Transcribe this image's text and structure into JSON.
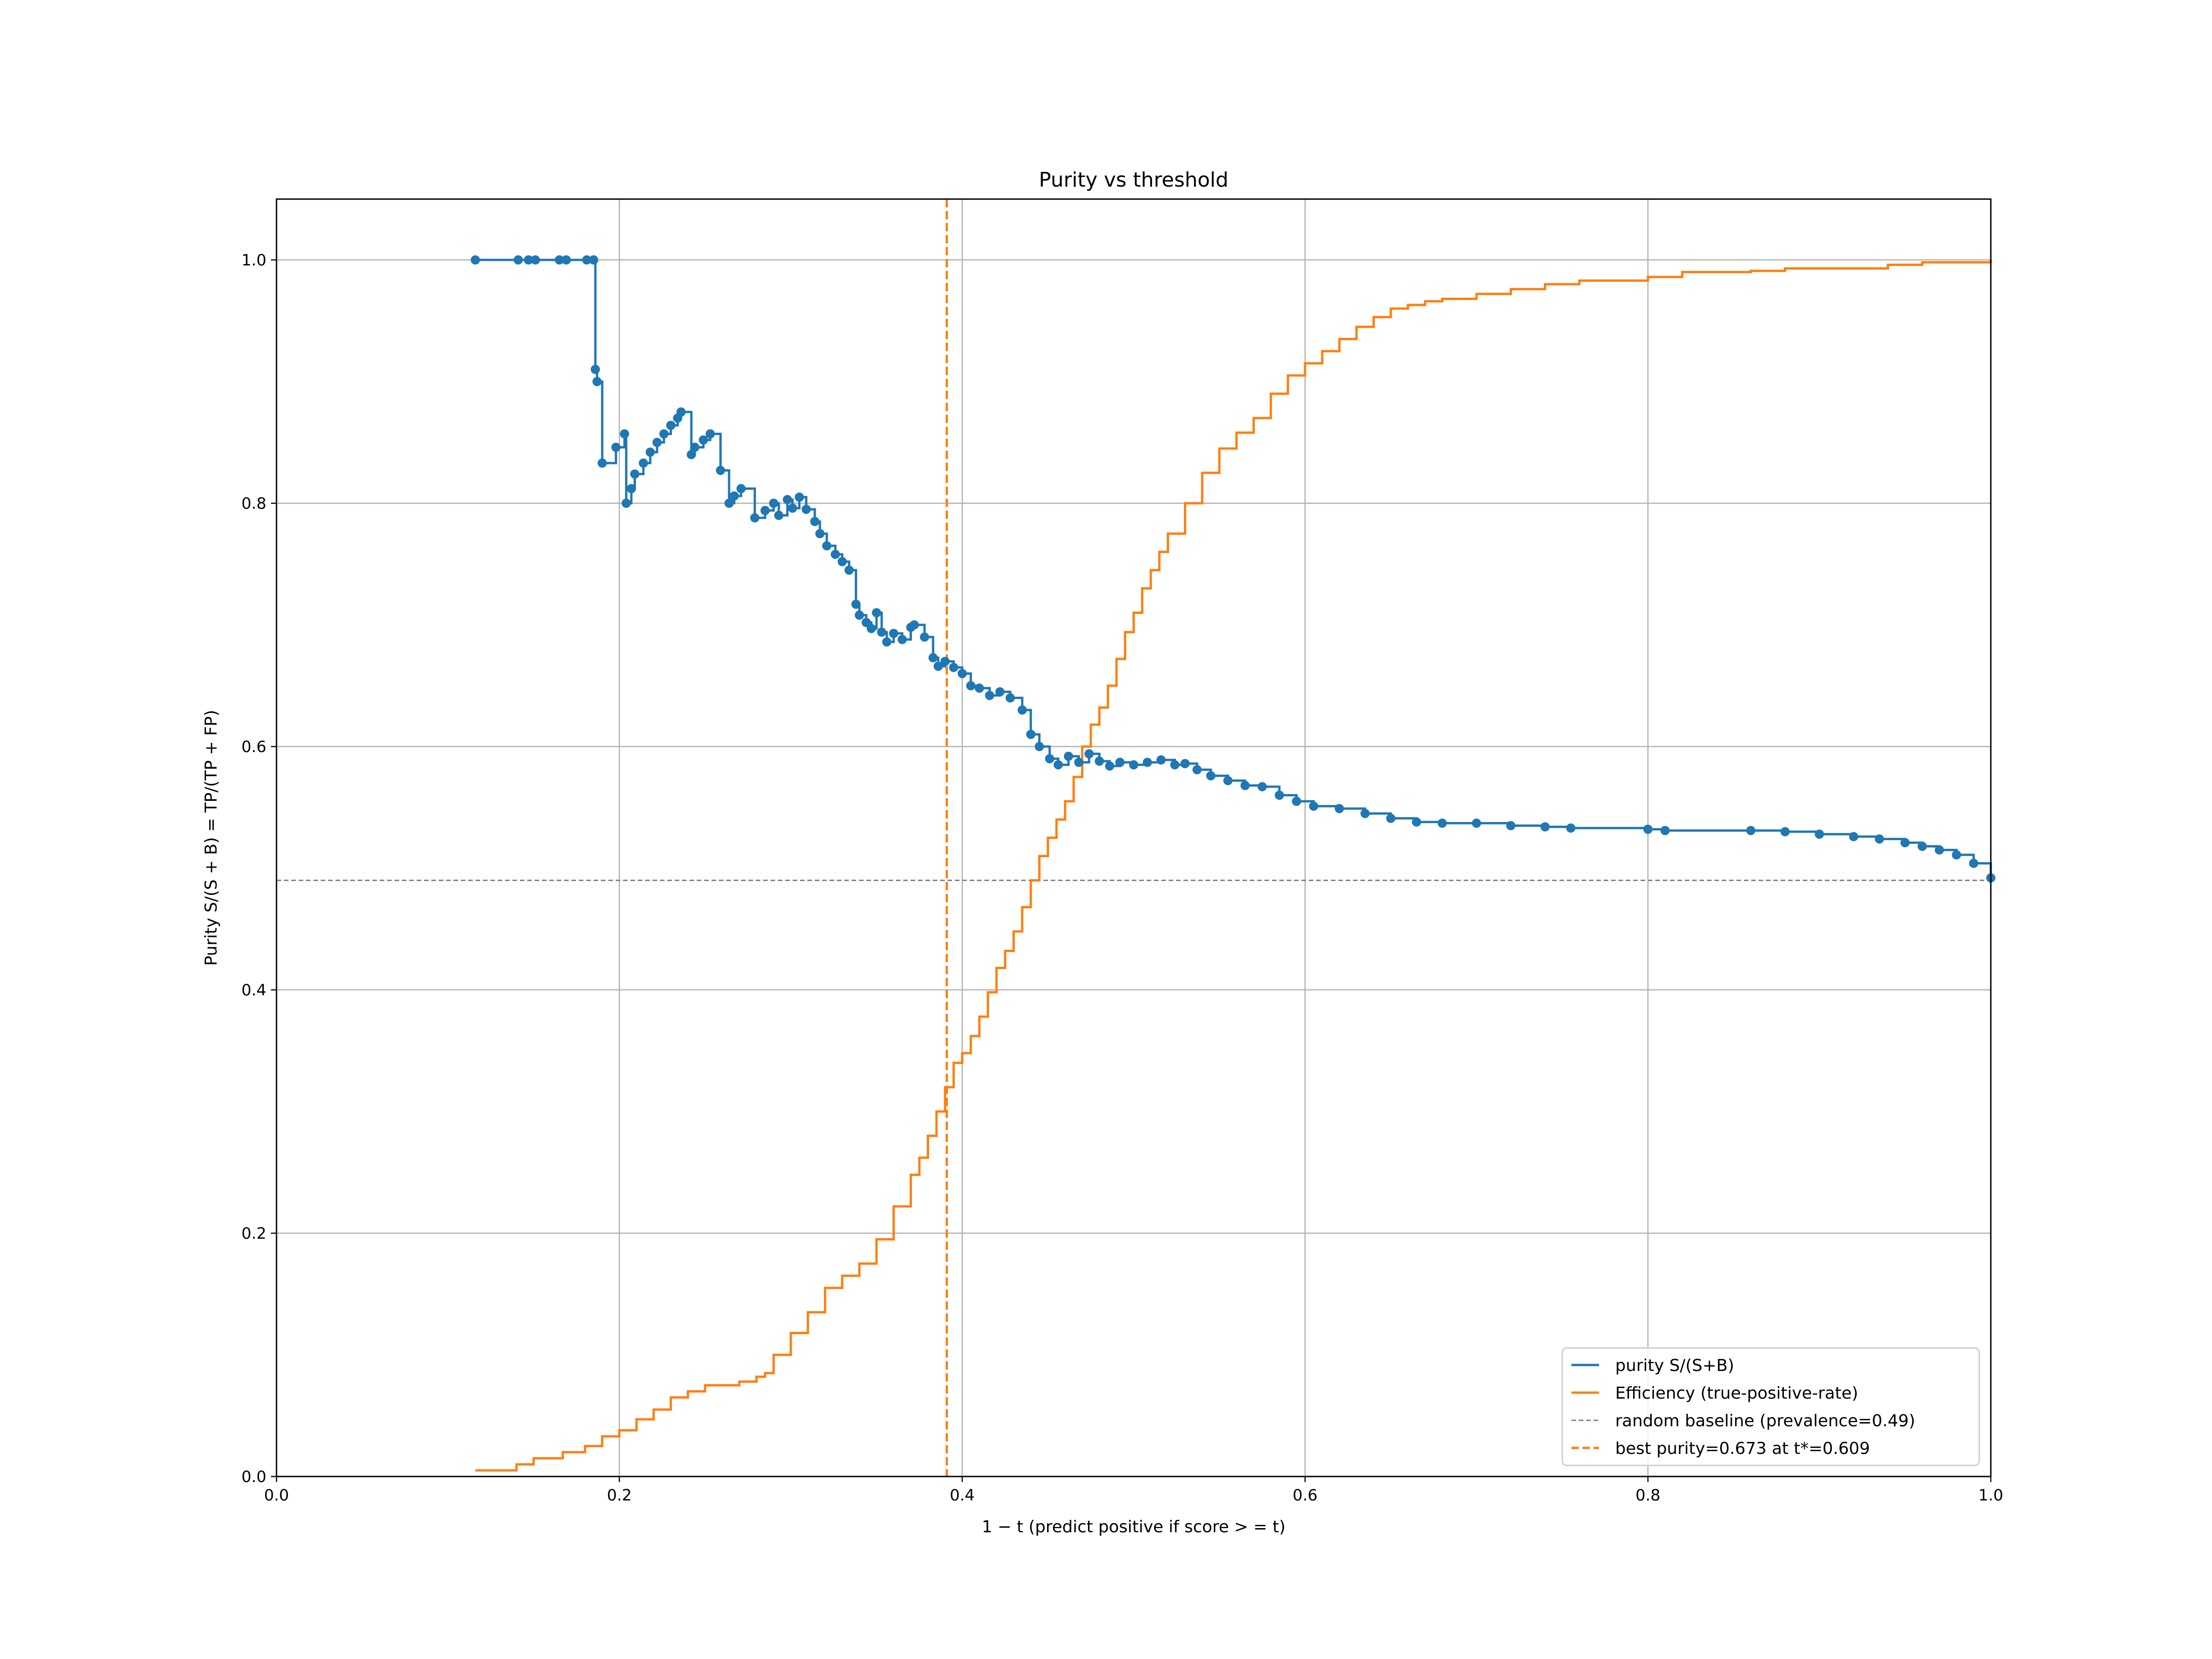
{
  "chart_data": {
    "type": "line",
    "title": "Purity vs threshold",
    "xlabel": "1 − t  (predict positive if score  > = t)",
    "ylabel": "Purity  S/(S + B) = TP/(TP + FP)",
    "xlim": [
      0.0,
      1.0
    ],
    "ylim": [
      0.0,
      1.05
    ],
    "x_ticks": [
      "0.0",
      "0.2",
      "0.4",
      "0.6",
      "0.8",
      "1.0"
    ],
    "y_ticks": [
      "0.0",
      "0.2",
      "0.4",
      "0.6",
      "0.8",
      "1.0"
    ],
    "grid": true,
    "legend_position": "lower-right",
    "colors": {
      "purity": "#1f77b4",
      "efficiency": "#ff7f0e",
      "baseline": "#808080",
      "best": "#ff7f0e",
      "grid": "#b0b0b0"
    },
    "series": [
      {
        "name": "purity S/(S+B)",
        "style": "step-with-markers",
        "x": [
          0.116,
          0.141,
          0.147,
          0.151,
          0.165,
          0.169,
          0.181,
          0.185,
          0.186,
          0.187,
          0.19,
          0.198,
          0.203,
          0.204,
          0.207,
          0.209,
          0.214,
          0.218,
          0.222,
          0.226,
          0.23,
          0.234,
          0.236,
          0.242,
          0.244,
          0.249,
          0.253,
          0.259,
          0.264,
          0.267,
          0.271,
          0.279,
          0.285,
          0.29,
          0.293,
          0.298,
          0.301,
          0.305,
          0.309,
          0.314,
          0.317,
          0.321,
          0.326,
          0.33,
          0.334,
          0.338,
          0.34,
          0.344,
          0.347,
          0.35,
          0.353,
          0.356,
          0.36,
          0.365,
          0.37,
          0.372,
          0.378,
          0.383,
          0.386,
          0.39,
          0.395,
          0.4,
          0.405,
          0.41,
          0.416,
          0.422,
          0.428,
          0.435,
          0.44,
          0.445,
          0.451,
          0.456,
          0.462,
          0.468,
          0.474,
          0.48,
          0.486,
          0.492,
          0.5,
          0.508,
          0.516,
          0.524,
          0.53,
          0.537,
          0.545,
          0.555,
          0.565,
          0.575,
          0.585,
          0.595,
          0.605,
          0.62,
          0.635,
          0.65,
          0.665,
          0.68,
          0.7,
          0.72,
          0.74,
          0.755,
          0.8,
          0.81,
          0.86,
          0.88,
          0.9,
          0.92,
          0.935,
          0.95,
          0.96,
          0.97,
          0.98,
          0.99,
          1.0
        ],
        "y": [
          1.0,
          1.0,
          1.0,
          1.0,
          1.0,
          1.0,
          1.0,
          1.0,
          0.91,
          0.9,
          0.833,
          0.846,
          0.857,
          0.8,
          0.812,
          0.824,
          0.833,
          0.842,
          0.85,
          0.857,
          0.864,
          0.87,
          0.875,
          0.84,
          0.846,
          0.852,
          0.857,
          0.827,
          0.8,
          0.806,
          0.812,
          0.788,
          0.794,
          0.8,
          0.79,
          0.803,
          0.796,
          0.805,
          0.795,
          0.785,
          0.775,
          0.765,
          0.758,
          0.752,
          0.745,
          0.717,
          0.708,
          0.702,
          0.697,
          0.71,
          0.694,
          0.686,
          0.693,
          0.688,
          0.698,
          0.7,
          0.69,
          0.673,
          0.666,
          0.67,
          0.665,
          0.66,
          0.65,
          0.648,
          0.642,
          0.645,
          0.64,
          0.63,
          0.61,
          0.6,
          0.59,
          0.585,
          0.592,
          0.587,
          0.594,
          0.588,
          0.584,
          0.587,
          0.585,
          0.587,
          0.589,
          0.585,
          0.586,
          0.581,
          0.576,
          0.572,
          0.568,
          0.567,
          0.56,
          0.555,
          0.551,
          0.549,
          0.545,
          0.541,
          0.538,
          0.537,
          0.537,
          0.535,
          0.534,
          0.533,
          0.532,
          0.531,
          0.531,
          0.53,
          0.528,
          0.526,
          0.524,
          0.521,
          0.518,
          0.515,
          0.511,
          0.504,
          0.492
        ]
      },
      {
        "name": "Efficiency (true-positive-rate)",
        "style": "step",
        "x": [
          0.116,
          0.14,
          0.15,
          0.167,
          0.18,
          0.19,
          0.2,
          0.21,
          0.22,
          0.23,
          0.24,
          0.25,
          0.26,
          0.27,
          0.28,
          0.285,
          0.29,
          0.3,
          0.31,
          0.32,
          0.33,
          0.34,
          0.35,
          0.36,
          0.37,
          0.375,
          0.38,
          0.385,
          0.39,
          0.395,
          0.4,
          0.405,
          0.41,
          0.415,
          0.42,
          0.425,
          0.43,
          0.435,
          0.44,
          0.445,
          0.45,
          0.455,
          0.46,
          0.465,
          0.47,
          0.475,
          0.48,
          0.485,
          0.49,
          0.495,
          0.5,
          0.505,
          0.51,
          0.515,
          0.52,
          0.53,
          0.54,
          0.55,
          0.56,
          0.57,
          0.58,
          0.59,
          0.6,
          0.61,
          0.62,
          0.63,
          0.64,
          0.65,
          0.66,
          0.67,
          0.68,
          0.7,
          0.72,
          0.74,
          0.76,
          0.8,
          0.82,
          0.86,
          0.88,
          0.94,
          0.96,
          1.0
        ],
        "y": [
          0.005,
          0.01,
          0.015,
          0.02,
          0.025,
          0.033,
          0.038,
          0.047,
          0.055,
          0.065,
          0.07,
          0.075,
          0.075,
          0.078,
          0.082,
          0.085,
          0.1,
          0.118,
          0.135,
          0.155,
          0.165,
          0.175,
          0.195,
          0.222,
          0.248,
          0.262,
          0.28,
          0.3,
          0.32,
          0.34,
          0.348,
          0.362,
          0.378,
          0.398,
          0.418,
          0.432,
          0.448,
          0.468,
          0.49,
          0.51,
          0.525,
          0.54,
          0.555,
          0.575,
          0.6,
          0.618,
          0.632,
          0.65,
          0.672,
          0.694,
          0.71,
          0.73,
          0.745,
          0.76,
          0.775,
          0.8,
          0.825,
          0.845,
          0.858,
          0.87,
          0.89,
          0.905,
          0.915,
          0.925,
          0.935,
          0.945,
          0.953,
          0.96,
          0.963,
          0.966,
          0.968,
          0.972,
          0.976,
          0.98,
          0.983,
          0.986,
          0.99,
          0.991,
          0.993,
          0.996,
          0.998,
          1.0
        ]
      },
      {
        "name": "random baseline (prevalence=0.49)",
        "style": "hline-dashed",
        "value": 0.49
      },
      {
        "name": "best purity=0.673 at t*=0.609",
        "style": "vline-dashed",
        "value": 0.391
      }
    ]
  }
}
